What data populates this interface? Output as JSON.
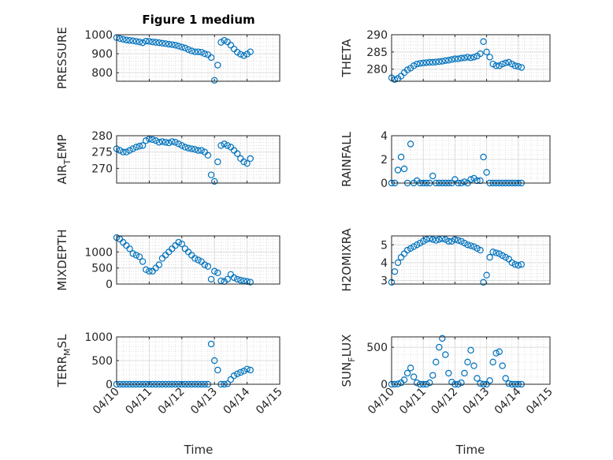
{
  "chart_data": {
    "type": "scatter",
    "title": "Figure 1 medium",
    "xlabel": "Time",
    "x_tick_labels": [
      "04/10",
      "04/11",
      "04/12",
      "04/13",
      "04/14",
      "04/15"
    ],
    "x_unit": "days since 04/10",
    "xlim": [
      0,
      5
    ],
    "marker_color": "#0072BD",
    "grid": "major and minor",
    "x": [
      0,
      0.1,
      0.2,
      0.3,
      0.4,
      0.5,
      0.6,
      0.7,
      0.8,
      0.9,
      1.0,
      1.1,
      1.2,
      1.3,
      1.4,
      1.5,
      1.6,
      1.7,
      1.8,
      1.9,
      2.0,
      2.1,
      2.2,
      2.3,
      2.4,
      2.5,
      2.6,
      2.7,
      2.8,
      2.9,
      3.0,
      3.1,
      3.2,
      3.3,
      3.4,
      3.5,
      3.6,
      3.7,
      3.8,
      3.9,
      4.0,
      4.1
    ],
    "series": [
      {
        "name": "PRESSURE",
        "ylim": [
          755,
          1000
        ],
        "yticks": [
          800,
          900,
          1000
        ],
        "ytick_labels": [
          "800",
          "900",
          "1000"
        ],
        "values": [
          985,
          980,
          976,
          972,
          970,
          968,
          965,
          962,
          958,
          966,
          965,
          962,
          960,
          958,
          955,
          953,
          950,
          948,
          945,
          940,
          935,
          930,
          922,
          915,
          910,
          910,
          908,
          900,
          895,
          880,
          760,
          840,
          960,
          970,
          962,
          945,
          925,
          908,
          897,
          890,
          898,
          910
        ]
      },
      {
        "name": "THETA",
        "ylim": [
          276.5,
          290
        ],
        "yticks": [
          280,
          285,
          290
        ],
        "ytick_labels": [
          "280",
          "285",
          "290"
        ],
        "values": [
          277.5,
          277,
          277.3,
          278,
          279,
          279.8,
          280.3,
          281,
          281.5,
          281.7,
          281.8,
          281.9,
          282,
          282,
          282.1,
          282.2,
          282.3,
          282.5,
          282.6,
          282.8,
          283,
          283,
          283.2,
          283.3,
          283.5,
          283.3,
          283.5,
          283.8,
          284.5,
          288,
          285,
          283.5,
          281.5,
          281,
          281,
          281.5,
          281.8,
          282,
          281.5,
          281,
          280.8,
          280.5
        ]
      },
      {
        "name": "AIR_TEMP",
        "ylim": [
          265.5,
          280
        ],
        "yticks": [
          270,
          275,
          280
        ],
        "ytick_labels": [
          "270",
          "275",
          "280"
        ],
        "values": [
          276,
          275.5,
          275,
          275,
          275.5,
          276,
          276.5,
          276.8,
          277,
          278.5,
          279,
          278.8,
          278.5,
          278,
          278.2,
          278,
          277.8,
          278.2,
          278,
          277.5,
          277,
          276.5,
          276.2,
          276,
          275.8,
          275.5,
          275.5,
          275,
          274,
          268,
          266,
          272,
          277,
          277.5,
          277,
          276.5,
          275.5,
          274.5,
          273,
          272,
          271.5,
          273
        ]
      },
      {
        "name": "RAINFALL",
        "ylim": [
          0,
          4
        ],
        "yticks": [
          0,
          2,
          4
        ],
        "ytick_labels": [
          "0",
          "2",
          "4"
        ],
        "values": [
          0,
          0,
          1.1,
          2.2,
          1.2,
          0,
          3.3,
          0,
          0.2,
          0,
          0,
          0,
          0,
          0.6,
          0,
          0,
          0,
          0,
          0,
          0,
          0.3,
          0,
          0,
          0.1,
          0,
          0.3,
          0.4,
          0.2,
          0.2,
          2.2,
          0.9,
          0,
          0,
          0,
          0,
          0,
          0,
          0,
          0,
          0,
          0,
          0
        ]
      },
      {
        "name": "MIXDEPTH",
        "ylim": [
          0,
          1500
        ],
        "yticks": [
          0,
          500,
          1000
        ],
        "ytick_labels": [
          "0",
          "500",
          "1000"
        ],
        "values": [
          1450,
          1400,
          1300,
          1200,
          1100,
          950,
          900,
          850,
          700,
          450,
          400,
          400,
          500,
          600,
          800,
          900,
          1000,
          1100,
          1200,
          1300,
          1250,
          1100,
          1000,
          900,
          800,
          750,
          700,
          600,
          550,
          150,
          400,
          350,
          100,
          80,
          150,
          300,
          200,
          150,
          120,
          100,
          80,
          60
        ]
      },
      {
        "name": "H2OMIXRA",
        "ylim": [
          2.8,
          5.5
        ],
        "yticks": [
          3,
          4,
          5
        ],
        "ytick_labels": [
          "3",
          "4",
          "5"
        ],
        "values": [
          2.9,
          3.5,
          4.0,
          4.3,
          4.5,
          4.7,
          4.8,
          4.9,
          5.0,
          5.1,
          5.2,
          5.3,
          5.35,
          5.3,
          5.25,
          5.3,
          5.35,
          5.3,
          5.2,
          5.2,
          5.3,
          5.25,
          5.2,
          5.1,
          5.0,
          4.95,
          4.9,
          4.8,
          4.7,
          2.9,
          3.3,
          4.3,
          4.6,
          4.55,
          4.5,
          4.4,
          4.3,
          4.2,
          4.0,
          3.9,
          3.85,
          3.9
        ]
      },
      {
        "name": "TERR_MSL",
        "ylim": [
          0,
          1000
        ],
        "yticks": [
          0,
          500,
          1000
        ],
        "ytick_labels": [
          "0",
          "500",
          "1000"
        ],
        "values": [
          0,
          0,
          0,
          0,
          0,
          0,
          0,
          0,
          0,
          0,
          0,
          0,
          0,
          0,
          0,
          0,
          0,
          0,
          0,
          0,
          0,
          0,
          0,
          0,
          0,
          0,
          0,
          0,
          0,
          850,
          500,
          300,
          0,
          0,
          10,
          100,
          180,
          220,
          250,
          280,
          320,
          300
        ]
      },
      {
        "name": "SUN_FLUX",
        "ylim": [
          0,
          640
        ],
        "yticks": [
          0,
          500
        ],
        "ytick_labels": [
          "0",
          "500"
        ],
        "values": [
          0,
          0,
          5,
          20,
          60,
          150,
          220,
          100,
          20,
          0,
          0,
          0,
          20,
          120,
          300,
          500,
          620,
          400,
          150,
          30,
          0,
          0,
          20,
          150,
          300,
          460,
          250,
          80,
          10,
          0,
          0,
          50,
          300,
          420,
          440,
          250,
          80,
          10,
          0,
          0,
          0,
          0
        ]
      }
    ]
  }
}
